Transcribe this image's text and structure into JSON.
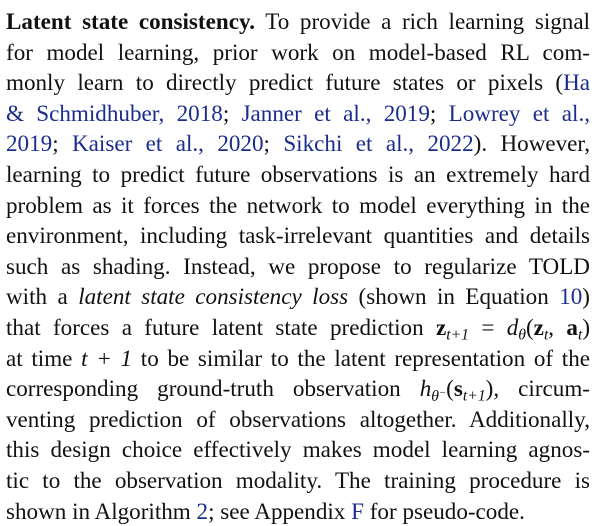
{
  "paragraph": {
    "heading": "Latent state consistency.",
    "lines": [
      [
        {
          "t": "text",
          "v": " To provide a rich learning signal"
        }
      ],
      [
        {
          "t": "text",
          "v": "for model learning, prior work on model-based RL com-"
        }
      ],
      [
        {
          "t": "text",
          "v": "monly learn to directly predict future states or pixels ("
        },
        {
          "t": "cite",
          "v": "Ha"
        }
      ],
      [
        {
          "t": "cite",
          "v": "& Schmidhuber, 2018"
        },
        {
          "t": "text",
          "v": "; "
        },
        {
          "t": "cite",
          "v": "Janner et al., 2019"
        },
        {
          "t": "text",
          "v": "; "
        },
        {
          "t": "cite",
          "v": "Lowrey et al.,"
        }
      ],
      [
        {
          "t": "cite",
          "v": "2019"
        },
        {
          "t": "text",
          "v": "; "
        },
        {
          "t": "cite",
          "v": "Kaiser et al., 2020"
        },
        {
          "t": "text",
          "v": "; "
        },
        {
          "t": "cite",
          "v": "Sikchi et al., 2022"
        },
        {
          "t": "text",
          "v": ").  However,"
        }
      ],
      [
        {
          "t": "text",
          "v": "learning to predict future observations is an extremely hard"
        }
      ],
      [
        {
          "t": "text",
          "v": "problem as it forces the network to model everything in the"
        }
      ],
      [
        {
          "t": "text",
          "v": "environment, including task-irrelevant quantities and details"
        }
      ],
      [
        {
          "t": "text",
          "v": "such as shading. Instead, we propose to regularize TOLD"
        }
      ],
      [
        {
          "t": "text",
          "v": "with a "
        },
        {
          "t": "it",
          "v": "latent state consistency loss"
        },
        {
          "t": "text",
          "v": " (shown in Equation "
        },
        {
          "t": "ref",
          "v": "10"
        },
        {
          "t": "text",
          "v": ")"
        }
      ],
      [
        {
          "t": "text",
          "v": "that forces a future latent state prediction "
        },
        {
          "t": "html",
          "v": "<span class=\"mb\">z</span><sub class=\"math\"><i>t</i>+1</sub> <span class=\"mup\">=</span> <i>d</i><sub class=\"math\"><i>θ</i></sub><span class=\"mup\">(</span><span class=\"mb\">z</span><sub><i>t</i></sub><span class=\"mup\">, </span><span class=\"mb\">a</span><sub><i>t</i></sub><span class=\"mup\">)</span>"
        }
      ],
      [
        {
          "t": "text",
          "v": "at time "
        },
        {
          "t": "html",
          "v": "<i>t</i> + 1"
        },
        {
          "t": "text",
          "v": " to be similar to the latent representation of the"
        }
      ],
      [
        {
          "t": "text",
          "v": "corresponding ground-truth observation "
        },
        {
          "t": "html",
          "v": "<i>h</i><sub><i>θ</i><sup>−</sup></sub><span class=\"mup\">(</span><span class=\"mb\">s</span><sub><i>t</i>+1</sub><span class=\"mup\">)</span>"
        },
        {
          "t": "text",
          "v": ", circum-"
        }
      ],
      [
        {
          "t": "text",
          "v": "venting prediction of observations altogether. Additionally,"
        }
      ],
      [
        {
          "t": "text",
          "v": "this design choice effectively makes model learning agnos-"
        }
      ],
      [
        {
          "t": "text",
          "v": "tic to the observation modality. The training procedure is"
        }
      ],
      [
        {
          "t": "text",
          "v": "shown in Algorithm "
        },
        {
          "t": "ref",
          "v": "2"
        },
        {
          "t": "text",
          "v": "; see Appendix "
        },
        {
          "t": "ref",
          "v": "F"
        },
        {
          "t": "text",
          "v": " for pseudo-code."
        }
      ]
    ]
  },
  "colors": {
    "text": "#111111",
    "link": "#1a2c8c",
    "background": "#ffffff"
  }
}
